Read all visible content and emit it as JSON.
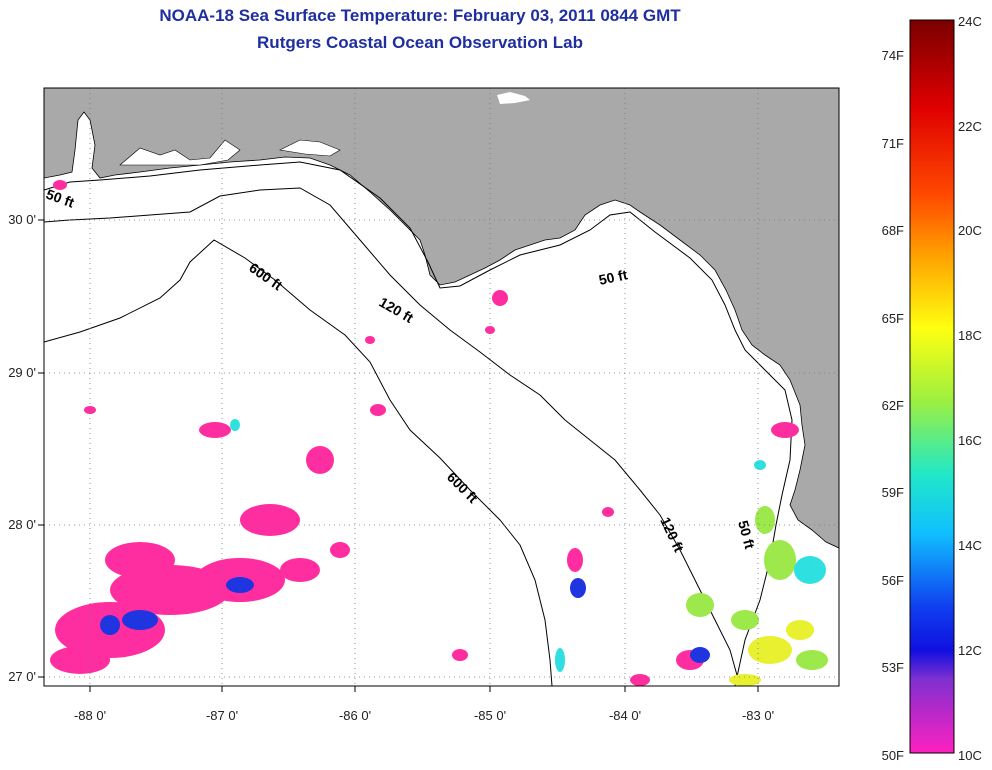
{
  "title": {
    "line1": "NOAA-18 Sea Surface Temperature:  February 03, 2011 0844 GMT",
    "line2": "Rutgers Coastal Ocean Observation Lab"
  },
  "axes": {
    "lon_labels": [
      "-88 0'",
      "-87 0'",
      "-86 0'",
      "-85 0'",
      "-84 0'",
      "-83 0'"
    ],
    "lat_labels": [
      "30 0'",
      "29 0'",
      "28 0'",
      "27 0'"
    ]
  },
  "contours": {
    "c50_a": "50 ft",
    "c50_b": "50 ft",
    "c50_c": "50 ft",
    "c120_a": "120 ft",
    "c120_b": "120 ft",
    "c600_a": "600 ft",
    "c600_b": "600 ft"
  },
  "colorbar": {
    "fahrenheit": [
      "74F",
      "71F",
      "68F",
      "65F",
      "62F",
      "59F",
      "56F",
      "53F",
      "50F"
    ],
    "celsius": [
      "24C",
      "22C",
      "20C",
      "18C",
      "16C",
      "14C",
      "12C",
      "10C"
    ]
  },
  "colors": {
    "land": "#a9a9a9",
    "water": "#ffffff",
    "title": "#1f2fa0",
    "sst_cold": "#ff2ea0",
    "sst_blue": "#1f35e0",
    "sst_cyan": "#2fe0e0",
    "sst_green": "#9de84a",
    "sst_yellow": "#e8f030"
  }
}
